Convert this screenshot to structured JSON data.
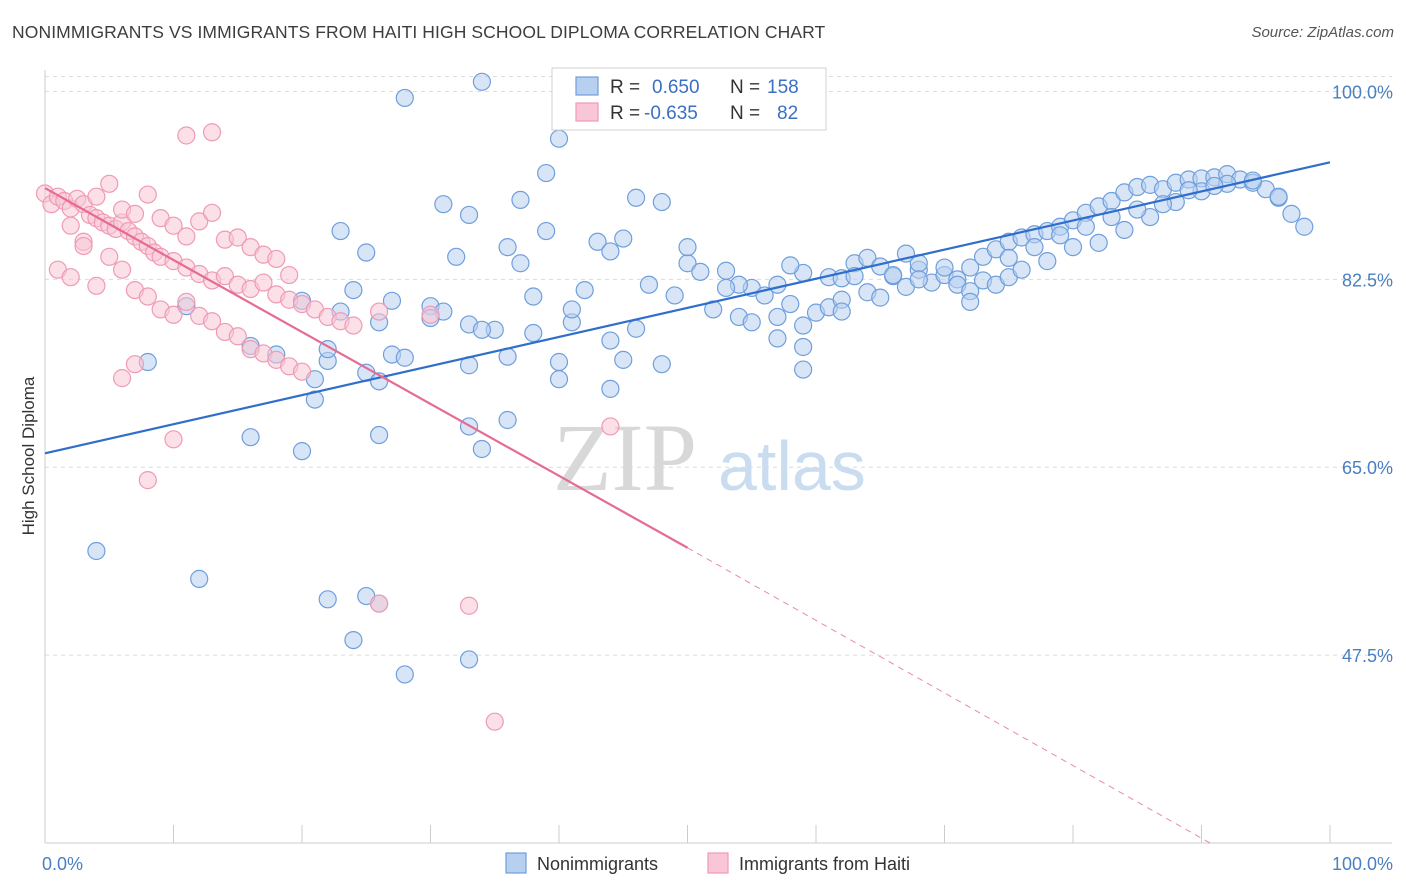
{
  "title": "NONIMMIGRANTS VS IMMIGRANTS FROM HAITI HIGH SCHOOL DIPLOMA CORRELATION CHART",
  "source": "Source: ZipAtlas.com",
  "watermark": {
    "zip": "ZIP",
    "atlas": "atlas"
  },
  "chart_data": {
    "type": "scatter",
    "ylabel": "High School Diploma",
    "xlim": [
      0,
      100
    ],
    "ylim": [
      30,
      102
    ],
    "x_tick_labels": [
      {
        "value": 0,
        "label": "0.0%"
      },
      {
        "value": 100,
        "label": "100.0%"
      }
    ],
    "y_tick_labels": [
      {
        "value": 100,
        "label": "100.0%"
      },
      {
        "value": 82.5,
        "label": "82.5%"
      },
      {
        "value": 65,
        "label": "65.0%"
      },
      {
        "value": 47.5,
        "label": "47.5%"
      }
    ],
    "grid": "horizontal dashed",
    "legend_top": {
      "entries": [
        {
          "r_label": "R =",
          "r_value": "0.650",
          "n_label": "N =",
          "n_value": "158",
          "color": "#6f9fdc"
        },
        {
          "r_label": "R =",
          "r_value": "-0.635",
          "n_label": "N =",
          "n_value": "82",
          "color": "#f09ab5"
        }
      ]
    },
    "series": [
      {
        "name": "Nonimmigrants",
        "color": "#6f9fdc",
        "fill": "#b8d0f0",
        "trend": {
          "x": [
            0,
            100
          ],
          "y": [
            66.3,
            93.4
          ],
          "color": "#2f6fcb"
        },
        "points": [
          [
            34,
            100.9
          ],
          [
            28,
            99.4
          ],
          [
            40,
            95.6
          ],
          [
            39,
            92.4
          ],
          [
            37,
            89.9
          ],
          [
            31,
            89.5
          ],
          [
            33,
            88.5
          ],
          [
            46,
            90.1
          ],
          [
            48,
            89.7
          ],
          [
            23,
            87.0
          ],
          [
            39,
            87.0
          ],
          [
            43,
            86.0
          ],
          [
            45,
            86.3
          ],
          [
            44,
            85.1
          ],
          [
            36,
            85.5
          ],
          [
            37,
            84.0
          ],
          [
            25,
            85.0
          ],
          [
            32,
            84.6
          ],
          [
            50,
            84.0
          ],
          [
            50,
            85.5
          ],
          [
            51,
            83.2
          ],
          [
            53,
            83.3
          ],
          [
            59,
            83.1
          ],
          [
            61,
            82.7
          ],
          [
            62,
            82.6
          ],
          [
            58,
            83.8
          ],
          [
            63,
            84.0
          ],
          [
            57,
            82.0
          ],
          [
            55,
            81.7
          ],
          [
            54,
            82.0
          ],
          [
            53,
            81.7
          ],
          [
            56,
            81.0
          ],
          [
            42,
            81.5
          ],
          [
            47,
            82.0
          ],
          [
            49,
            81.0
          ],
          [
            24,
            81.5
          ],
          [
            27,
            80.5
          ],
          [
            30,
            80.0
          ],
          [
            31,
            79.5
          ],
          [
            26,
            78.5
          ],
          [
            33,
            78.3
          ],
          [
            35,
            77.8
          ],
          [
            38,
            77.5
          ],
          [
            41,
            78.5
          ],
          [
            30,
            78.9
          ],
          [
            34,
            77.8
          ],
          [
            23,
            79.5
          ],
          [
            20,
            80.5
          ],
          [
            11,
            80.0
          ],
          [
            52,
            79.7
          ],
          [
            54,
            79.0
          ],
          [
            55,
            78.5
          ],
          [
            57,
            79.0
          ],
          [
            59,
            78.2
          ],
          [
            60,
            79.4
          ],
          [
            61,
            79.9
          ],
          [
            62,
            80.6
          ],
          [
            64,
            81.3
          ],
          [
            65,
            80.8
          ],
          [
            66,
            82.8
          ],
          [
            67,
            81.8
          ],
          [
            68,
            83.4
          ],
          [
            69,
            82.2
          ],
          [
            70,
            82.9
          ],
          [
            71,
            82.5
          ],
          [
            72,
            83.6
          ],
          [
            73,
            84.6
          ],
          [
            74,
            85.3
          ],
          [
            75,
            86.0
          ],
          [
            76,
            86.4
          ],
          [
            77,
            86.7
          ],
          [
            78,
            87.0
          ],
          [
            79,
            87.4
          ],
          [
            80,
            88.0
          ],
          [
            81,
            88.7
          ],
          [
            82,
            89.3
          ],
          [
            83,
            89.8
          ],
          [
            84,
            90.6
          ],
          [
            85,
            91.1
          ],
          [
            86,
            91.3
          ],
          [
            87,
            90.9
          ],
          [
            88,
            91.5
          ],
          [
            89,
            91.8
          ],
          [
            90,
            91.9
          ],
          [
            91,
            92.0
          ],
          [
            92,
            92.3
          ],
          [
            93,
            91.8
          ],
          [
            94,
            91.5
          ],
          [
            95,
            90.9
          ],
          [
            96,
            90.1
          ],
          [
            97,
            88.6
          ],
          [
            98,
            87.4
          ],
          [
            27,
            75.5
          ],
          [
            22,
            74.9
          ],
          [
            44,
            72.3
          ],
          [
            33,
            74.5
          ],
          [
            25,
            73.8
          ],
          [
            26,
            73.0
          ],
          [
            21,
            73.2
          ],
          [
            45,
            75.0
          ],
          [
            59,
            76.2
          ],
          [
            57,
            77.0
          ],
          [
            59,
            74.1
          ],
          [
            40,
            74.8
          ],
          [
            46,
            77.9
          ],
          [
            64,
            84.5
          ],
          [
            65,
            83.7
          ],
          [
            68,
            84.0
          ],
          [
            67,
            84.9
          ],
          [
            63,
            82.8
          ],
          [
            66,
            82.9
          ],
          [
            68,
            82.5
          ],
          [
            70,
            83.6
          ],
          [
            71,
            82.0
          ],
          [
            72,
            81.4
          ],
          [
            73,
            82.4
          ],
          [
            74,
            82.0
          ],
          [
            75,
            82.7
          ],
          [
            76,
            83.4
          ],
          [
            78,
            84.2
          ],
          [
            80,
            85.5
          ],
          [
            82,
            85.9
          ],
          [
            84,
            87.1
          ],
          [
            86,
            88.3
          ],
          [
            88,
            89.7
          ],
          [
            90,
            90.7
          ],
          [
            92,
            91.4
          ],
          [
            94,
            91.7
          ],
          [
            96,
            90.2
          ],
          [
            91,
            91.2
          ],
          [
            89,
            90.8
          ],
          [
            87,
            89.5
          ],
          [
            85,
            89.0
          ],
          [
            83,
            88.3
          ],
          [
            81,
            87.4
          ],
          [
            79,
            86.6
          ],
          [
            77,
            85.5
          ],
          [
            75,
            84.5
          ],
          [
            72,
            80.4
          ],
          [
            62,
            79.5
          ],
          [
            58,
            80.2
          ],
          [
            48,
            74.6
          ],
          [
            36,
            75.3
          ],
          [
            28,
            75.2
          ],
          [
            21,
            71.3
          ],
          [
            18,
            75.5
          ],
          [
            16,
            76.3
          ],
          [
            8,
            74.8
          ],
          [
            4,
            57.2
          ],
          [
            12,
            54.6
          ],
          [
            22,
            52.7
          ],
          [
            26,
            52.3
          ],
          [
            20,
            66.5
          ],
          [
            26,
            68.0
          ],
          [
            36,
            69.4
          ],
          [
            33,
            68.8
          ],
          [
            41,
            79.7
          ],
          [
            38,
            80.9
          ],
          [
            44,
            76.8
          ],
          [
            22,
            76.0
          ],
          [
            16,
            67.8
          ],
          [
            34,
            66.7
          ],
          [
            40,
            73.2
          ],
          [
            25,
            53.0
          ],
          [
            24,
            48.9
          ],
          [
            28,
            45.7
          ],
          [
            33,
            47.1
          ]
        ]
      },
      {
        "name": "Immigrants from Haiti",
        "color": "#f09ab5",
        "fill": "#f8c6d6",
        "trend": {
          "x": [
            0,
            50
          ],
          "y": [
            91.0,
            57.5
          ],
          "color": "#e56b95",
          "dashed_to": [
            100,
            23.5
          ]
        },
        "points": [
          [
            0,
            90.5
          ],
          [
            0.5,
            89.5
          ],
          [
            1,
            90.2
          ],
          [
            1.5,
            89.8
          ],
          [
            2,
            89.1
          ],
          [
            2.5,
            90.0
          ],
          [
            3,
            89.5
          ],
          [
            3.5,
            88.5
          ],
          [
            4,
            88.2
          ],
          [
            4.5,
            87.8
          ],
          [
            5,
            87.5
          ],
          [
            5.5,
            87.2
          ],
          [
            6,
            87.8
          ],
          [
            6.5,
            87.0
          ],
          [
            7,
            86.5
          ],
          [
            7.5,
            86.0
          ],
          [
            8,
            85.6
          ],
          [
            8.5,
            85.0
          ],
          [
            9,
            84.6
          ],
          [
            10,
            84.2
          ],
          [
            11,
            83.6
          ],
          [
            12,
            83.0
          ],
          [
            13,
            82.4
          ],
          [
            14,
            82.8
          ],
          [
            15,
            82.0
          ],
          [
            16,
            81.6
          ],
          [
            17,
            82.2
          ],
          [
            18,
            81.1
          ],
          [
            19,
            80.6
          ],
          [
            20,
            80.2
          ],
          [
            21,
            79.7
          ],
          [
            22,
            79.0
          ],
          [
            23,
            78.6
          ],
          [
            24,
            78.2
          ],
          [
            2,
            87.5
          ],
          [
            3,
            86.0
          ],
          [
            4,
            90.2
          ],
          [
            5,
            91.4
          ],
          [
            6,
            89.0
          ],
          [
            7,
            88.6
          ],
          [
            8,
            90.4
          ],
          [
            9,
            88.2
          ],
          [
            10,
            87.5
          ],
          [
            11,
            86.5
          ],
          [
            12,
            87.9
          ],
          [
            13,
            88.7
          ],
          [
            14,
            86.2
          ],
          [
            15,
            86.4
          ],
          [
            16,
            85.5
          ],
          [
            17,
            84.8
          ],
          [
            18,
            84.4
          ],
          [
            19,
            82.9
          ],
          [
            1,
            83.4
          ],
          [
            2,
            82.7
          ],
          [
            3,
            85.6
          ],
          [
            4,
            81.9
          ],
          [
            5,
            84.6
          ],
          [
            6,
            83.4
          ],
          [
            7,
            81.5
          ],
          [
            8,
            80.9
          ],
          [
            9,
            79.7
          ],
          [
            10,
            79.2
          ],
          [
            11,
            80.4
          ],
          [
            12,
            79.1
          ],
          [
            13,
            78.6
          ],
          [
            14,
            77.6
          ],
          [
            15,
            77.2
          ],
          [
            16,
            76.0
          ],
          [
            17,
            75.6
          ],
          [
            18,
            75.0
          ],
          [
            19,
            74.4
          ],
          [
            20,
            73.9
          ],
          [
            13,
            96.2
          ],
          [
            11,
            95.9
          ],
          [
            6,
            73.3
          ],
          [
            7,
            74.6
          ],
          [
            8,
            63.8
          ],
          [
            10,
            67.6
          ],
          [
            26,
            79.5
          ],
          [
            30,
            79.2
          ],
          [
            33,
            52.1
          ],
          [
            26,
            52.3
          ],
          [
            35,
            41.3
          ],
          [
            44,
            68.8
          ]
        ]
      }
    ]
  },
  "bottom_legend": [
    {
      "label": "Nonimmigrants",
      "color": "#6f9fdc",
      "fill": "#b8d0f0"
    },
    {
      "label": "Immigrants from Haiti",
      "color": "#f09ab5",
      "fill": "#f8c6d6"
    }
  ]
}
